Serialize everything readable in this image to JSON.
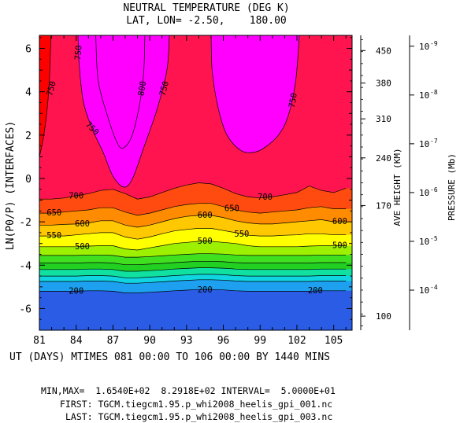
{
  "chart_data": {
    "type": "heatmap",
    "title": "NEUTRAL TEMPERATURE (DEG K)",
    "subtitle": "LAT, LON= -2.50,    180.00",
    "ylabel": "LN(P0/P) (INTERFACES)",
    "xlabel": "UT (DAYS) MTIMES 081 00:00 TO 106 00:00 BY 1440 MINS",
    "xlim": [
      81,
      106.5
    ],
    "ylim": [
      -7,
      6.6
    ],
    "x_ticks": [
      "81",
      "84",
      "87",
      "90",
      "93",
      "96",
      "99",
      "102",
      "105"
    ],
    "y_ticks": [
      "6",
      "4",
      "2",
      "0",
      "-2",
      "-4",
      "-6"
    ],
    "right_axis_height": {
      "label": "AVE HEIGHT (KM)",
      "ticks": [
        {
          "label": "450",
          "lnp": 5.9
        },
        {
          "label": "380",
          "lnp": 4.4
        },
        {
          "label": "310",
          "lnp": 2.75
        },
        {
          "label": "240",
          "lnp": 0.95
        },
        {
          "label": "170",
          "lnp": -1.25
        },
        {
          "label": "100",
          "lnp": -6.35
        }
      ]
    },
    "right_axis_pressure": {
      "label": "PRESSURE (Mb)",
      "ticks": [
        {
          "label": "10",
          "exp": "-9",
          "lnp": 6.1
        },
        {
          "label": "10",
          "exp": "-8",
          "lnp": 3.85
        },
        {
          "label": "10",
          "exp": "-7",
          "lnp": 1.6
        },
        {
          "label": "10",
          "exp": "-6",
          "lnp": -0.65
        },
        {
          "label": "10",
          "exp": "-5",
          "lnp": -2.9
        },
        {
          "label": "10",
          "exp": "-4",
          "lnp": -5.15
        }
      ]
    },
    "x_grid": [
      81,
      82,
      83,
      84,
      85,
      86,
      87,
      88,
      89,
      90,
      91,
      92,
      93,
      94,
      95,
      96,
      97,
      98,
      99,
      100,
      101,
      102,
      103,
      104,
      105,
      106
    ],
    "contour_levels": [
      200,
      250,
      300,
      350,
      400,
      450,
      500,
      550,
      600,
      650,
      700,
      750,
      800
    ],
    "colors": {
      "below_200": "#2a5ce6",
      "200": "#1ea0f0",
      "250": "#10d4e0",
      "300": "#10e0a0",
      "350": "#22d022",
      "400": "#40e020",
      "450": "#9cf000",
      "500": "#ffff00",
      "550": "#ffc800",
      "600": "#ff8c00",
      "650": "#ff4a10",
      "700": "#ff0000",
      "750": "#ff1450",
      "800": "#ff00ff"
    },
    "isolines": [
      {
        "level": 200,
        "y": [
          -5.2,
          -5.2,
          -5.2,
          -5.2,
          -5.18,
          -5.18,
          -5.2,
          -5.28,
          -5.28,
          -5.25,
          -5.22,
          -5.18,
          -5.15,
          -5.12,
          -5.12,
          -5.14,
          -5.18,
          -5.2,
          -5.2,
          -5.2,
          -5.2,
          -5.2,
          -5.2,
          -5.18,
          -5.18,
          -5.18
        ]
      },
      {
        "level": 250,
        "y": [
          -4.75,
          -4.75,
          -4.75,
          -4.75,
          -4.73,
          -4.73,
          -4.75,
          -4.83,
          -4.83,
          -4.8,
          -4.77,
          -4.73,
          -4.7,
          -4.67,
          -4.67,
          -4.69,
          -4.73,
          -4.75,
          -4.75,
          -4.75,
          -4.75,
          -4.75,
          -4.75,
          -4.73,
          -4.73,
          -4.73
        ]
      },
      {
        "level": 300,
        "y": [
          -4.5,
          -4.5,
          -4.5,
          -4.5,
          -4.48,
          -4.48,
          -4.5,
          -4.58,
          -4.58,
          -4.55,
          -4.52,
          -4.48,
          -4.45,
          -4.42,
          -4.42,
          -4.44,
          -4.48,
          -4.5,
          -4.5,
          -4.5,
          -4.5,
          -4.5,
          -4.5,
          -4.48,
          -4.48,
          -4.48
        ]
      },
      {
        "level": 350,
        "y": [
          -4.2,
          -4.2,
          -4.2,
          -4.2,
          -4.18,
          -4.18,
          -4.2,
          -4.28,
          -4.28,
          -4.25,
          -4.22,
          -4.18,
          -4.15,
          -4.12,
          -4.12,
          -4.14,
          -4.18,
          -4.2,
          -4.2,
          -4.2,
          -4.2,
          -4.2,
          -4.2,
          -4.18,
          -4.18,
          -4.18
        ]
      },
      {
        "level": 400,
        "y": [
          -3.9,
          -3.9,
          -3.9,
          -3.9,
          -3.88,
          -3.88,
          -3.9,
          -3.98,
          -3.98,
          -3.95,
          -3.92,
          -3.88,
          -3.85,
          -3.82,
          -3.82,
          -3.84,
          -3.88,
          -3.9,
          -3.9,
          -3.9,
          -3.9,
          -3.9,
          -3.9,
          -3.88,
          -3.88,
          -3.88
        ]
      },
      {
        "level": 450,
        "y": [
          -3.55,
          -3.55,
          -3.55,
          -3.55,
          -3.53,
          -3.53,
          -3.55,
          -3.63,
          -3.63,
          -3.6,
          -3.57,
          -3.53,
          -3.5,
          -3.47,
          -3.47,
          -3.49,
          -3.53,
          -3.55,
          -3.55,
          -3.55,
          -3.55,
          -3.55,
          -3.55,
          -3.53,
          -3.53,
          -3.53
        ]
      },
      {
        "level": 500,
        "y": [
          -3.15,
          -3.15,
          -3.15,
          -3.15,
          -3.12,
          -3.1,
          -3.1,
          -3.25,
          -3.3,
          -3.2,
          -3.1,
          -3.0,
          -2.95,
          -2.9,
          -2.9,
          -2.95,
          -3.0,
          -3.1,
          -3.15,
          -3.15,
          -3.15,
          -3.15,
          -3.12,
          -3.1,
          -3.1,
          -3.1
        ]
      },
      {
        "level": 550,
        "y": [
          -2.65,
          -2.65,
          -2.65,
          -2.6,
          -2.55,
          -2.5,
          -2.5,
          -2.7,
          -2.8,
          -2.7,
          -2.55,
          -2.42,
          -2.35,
          -2.3,
          -2.3,
          -2.4,
          -2.5,
          -2.62,
          -2.65,
          -2.65,
          -2.62,
          -2.6,
          -2.55,
          -2.55,
          -2.6,
          -2.6
        ]
      },
      {
        "level": 600,
        "y": [
          -2.15,
          -2.15,
          -2.12,
          -2.1,
          -2.05,
          -1.95,
          -1.95,
          -2.15,
          -2.25,
          -2.15,
          -2.0,
          -1.85,
          -1.75,
          -1.7,
          -1.7,
          -1.8,
          -1.95,
          -2.05,
          -2.1,
          -2.1,
          -2.05,
          -2.0,
          -1.95,
          -1.9,
          -2.0,
          -2.0
        ]
      },
      {
        "level": 650,
        "y": [
          -1.6,
          -1.6,
          -1.55,
          -1.5,
          -1.45,
          -1.35,
          -1.35,
          -1.55,
          -1.7,
          -1.6,
          -1.45,
          -1.3,
          -1.2,
          -1.15,
          -1.15,
          -1.3,
          -1.45,
          -1.55,
          -1.6,
          -1.55,
          -1.5,
          -1.45,
          -1.35,
          -1.3,
          -1.4,
          -1.4
        ]
      },
      {
        "level": 700,
        "y": [
          -0.95,
          -0.95,
          -0.9,
          -0.8,
          -0.7,
          -0.55,
          -0.5,
          -0.7,
          -0.95,
          -0.85,
          -0.65,
          -0.45,
          -0.3,
          -0.2,
          -0.25,
          -0.45,
          -0.7,
          -0.85,
          -0.9,
          -0.85,
          -0.75,
          -0.65,
          -0.35,
          -0.55,
          -0.65,
          -0.45
        ]
      }
    ],
    "isotherm_750": [
      {
        "pts": [
          [
            81.0,
            1.0
          ],
          [
            81.3,
            1.8
          ],
          [
            81.6,
            3.0
          ],
          [
            81.8,
            4.4
          ],
          [
            81.9,
            5.8
          ],
          [
            81.95,
            6.6
          ]
        ]
      },
      {
        "pts": [
          [
            84.15,
            6.6
          ],
          [
            84.25,
            5.2
          ],
          [
            84.6,
            3.5
          ],
          [
            85.3,
            2.3
          ],
          [
            86.2,
            1.2
          ],
          [
            87.0,
            0.1
          ],
          [
            87.9,
            -0.4
          ],
          [
            88.6,
            0.0
          ],
          [
            89.5,
            1.4
          ],
          [
            90.6,
            3.2
          ],
          [
            91.4,
            5.0
          ],
          [
            91.6,
            6.6
          ]
        ]
      },
      {
        "pts": [
          [
            95.0,
            6.6
          ],
          [
            95.1,
            4.9
          ],
          [
            95.6,
            3.2
          ],
          [
            96.3,
            2.0
          ],
          [
            97.4,
            1.3
          ],
          [
            98.4,
            1.2
          ],
          [
            99.3,
            1.4
          ],
          [
            100.5,
            2.0
          ],
          [
            101.3,
            2.9
          ],
          [
            101.9,
            4.5
          ],
          [
            102.2,
            6.6
          ]
        ]
      }
    ],
    "isotherm_800": [
      {
        "pts": [
          [
            85.6,
            6.6
          ],
          [
            85.8,
            4.5
          ],
          [
            86.6,
            2.8
          ],
          [
            87.3,
            1.7
          ],
          [
            87.8,
            1.4
          ],
          [
            88.5,
            1.9
          ],
          [
            89.1,
            3.2
          ],
          [
            89.5,
            4.8
          ],
          [
            89.6,
            6.6
          ]
        ]
      }
    ],
    "contour_labels": [
      {
        "text": "200",
        "x": 84.0,
        "y": -5.2,
        "rot": 0
      },
      {
        "text": "200",
        "x": 94.5,
        "y": -5.15,
        "rot": 0
      },
      {
        "text": "200",
        "x": 103.5,
        "y": -5.18,
        "rot": 0
      },
      {
        "text": "500",
        "x": 84.5,
        "y": -3.15,
        "rot": 0
      },
      {
        "text": "500",
        "x": 94.5,
        "y": -2.9,
        "rot": 0
      },
      {
        "text": "500",
        "x": 105.5,
        "y": -3.1,
        "rot": 0
      },
      {
        "text": "550",
        "x": 82.2,
        "y": -2.65,
        "rot": 0
      },
      {
        "text": "550",
        "x": 97.5,
        "y": -2.58,
        "rot": 0
      },
      {
        "text": "600",
        "x": 84.5,
        "y": -2.1,
        "rot": 0
      },
      {
        "text": "600",
        "x": 94.5,
        "y": -1.7,
        "rot": 0
      },
      {
        "text": "600",
        "x": 105.5,
        "y": -2.0,
        "rot": 0
      },
      {
        "text": "650",
        "x": 82.2,
        "y": -1.6,
        "rot": 0
      },
      {
        "text": "650",
        "x": 96.7,
        "y": -1.4,
        "rot": 0
      },
      {
        "text": "700",
        "x": 84.0,
        "y": -0.82,
        "rot": 0
      },
      {
        "text": "700",
        "x": 99.4,
        "y": -0.87,
        "rot": 0
      },
      {
        "text": "750",
        "x": 82.0,
        "y": 4.15,
        "rot": -75
      },
      {
        "text": "750",
        "x": 84.2,
        "y": 5.8,
        "rot": -85
      },
      {
        "text": "750",
        "x": 85.3,
        "y": 2.3,
        "rot": 45
      },
      {
        "text": "800",
        "x": 89.4,
        "y": 4.15,
        "rot": -80
      },
      {
        "text": "750",
        "x": 91.2,
        "y": 4.15,
        "rot": -75
      },
      {
        "text": "750",
        "x": 101.7,
        "y": 3.6,
        "rot": -80
      }
    ]
  },
  "footer": {
    "minmax": "MIN,MAX=  1.6540E+02  8.2918E+02 INTERVAL=  5.0000E+01",
    "first": "FIRST: TGCM.tiegcm1.95.p_whi2008_heelis_gpi_001.nc",
    "last": "LAST: TGCM.tiegcm1.95.p_whi2008_heelis_gpi_003.nc"
  }
}
